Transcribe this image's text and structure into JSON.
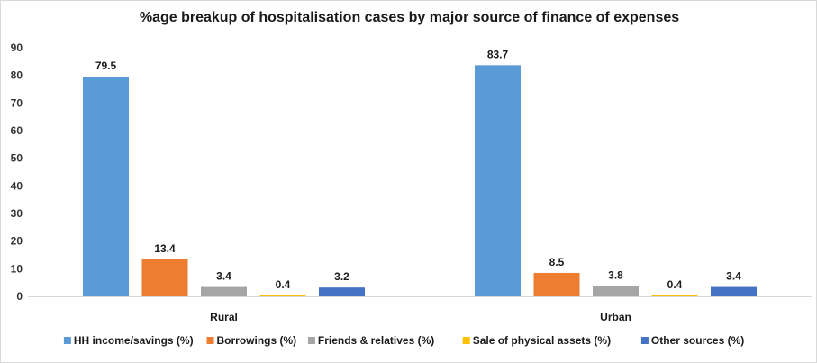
{
  "chart_data": {
    "type": "bar",
    "title": "%age breakup of hospitalisation cases by major source of finance of expenses",
    "categories": [
      "Rural",
      "Urban"
    ],
    "series": [
      {
        "name": "HH income/savings (%)",
        "color": "#5b9bd5",
        "values": [
          79.5,
          83.7
        ]
      },
      {
        "name": "Borrowings (%)",
        "color": "#ed7d31",
        "values": [
          13.4,
          8.5
        ]
      },
      {
        "name": "Friends & relatives (%)",
        "color": "#a5a5a5",
        "values": [
          3.4,
          3.8
        ]
      },
      {
        "name": "Sale of physical assets (%)",
        "color": "#ffc000",
        "values": [
          0.4,
          0.4
        ]
      },
      {
        "name": "Other sources (%)",
        "color": "#4472c4",
        "values": [
          3.2,
          3.4
        ]
      }
    ],
    "y_ticks": [
      "0",
      "10",
      "20",
      "30",
      "40",
      "50",
      "60",
      "70",
      "80",
      "90"
    ],
    "ylim": [
      0,
      90
    ],
    "grid": false,
    "legend_position": "bottom",
    "data_labels": true
  }
}
